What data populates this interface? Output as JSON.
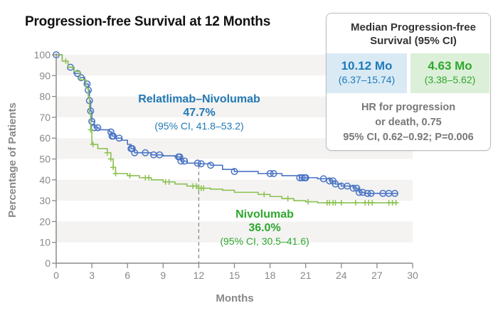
{
  "title": "Progression-free Survival at 12 Months",
  "summary_box": {
    "heading_line1": "Median Progression-free",
    "heading_line2": "Survival (95% CI)",
    "arm1": {
      "value": "10.12 Mo",
      "ci": "(6.37–15.74)",
      "color": "#1f7bb8",
      "bg": "#d9eaf5"
    },
    "arm2": {
      "value": "4.63 Mo",
      "ci": "(3.38–5.62)",
      "color": "#2ea82e",
      "bg": "#dcefd8"
    },
    "hr_line1": "HR for progression",
    "hr_line2": "or death, 0.75",
    "hr_line3": "95% CI, 0.62–0.92; P=0.006"
  },
  "annotations": {
    "arm1": {
      "name": "Relatlimab–Nivolumab",
      "pct": "47.7%",
      "ci": "(95% CI, 41.8–53.2)"
    },
    "arm2": {
      "name": "Nivolumab",
      "pct": "36.0%",
      "ci": "(95% CI, 30.5–41.6)"
    }
  },
  "chart_data": {
    "type": "line",
    "subtype": "kaplan-meier",
    "title": "Progression-free Survival at 12 Months",
    "xlabel": "Months",
    "ylabel": "Percentage of Patients",
    "xlim": [
      0,
      30
    ],
    "ylim": [
      0,
      100
    ],
    "xticks": [
      0,
      3,
      6,
      9,
      12,
      15,
      18,
      21,
      24,
      27,
      30
    ],
    "yticks": [
      0,
      10,
      20,
      30,
      40,
      50,
      60,
      70,
      80,
      90,
      100
    ],
    "reference_line_x": 12,
    "bands": "alternating light gray stripes 10-20, 30-40, 50-60, 70-80, 90-100",
    "series": [
      {
        "name": "Relatlimab–Nivolumab",
        "color": "#4a74c4",
        "marker": "circle",
        "points": [
          [
            0,
            100
          ],
          [
            0.5,
            97
          ],
          [
            1,
            94
          ],
          [
            1.5,
            91
          ],
          [
            2,
            89
          ],
          [
            2.4,
            86
          ],
          [
            2.7,
            83
          ],
          [
            2.8,
            78
          ],
          [
            2.9,
            73
          ],
          [
            3.0,
            68
          ],
          [
            3.2,
            65
          ],
          [
            3.6,
            64
          ],
          [
            4.5,
            63
          ],
          [
            4.7,
            61
          ],
          [
            5,
            60
          ],
          [
            5.5,
            59
          ],
          [
            6,
            57
          ],
          [
            6.3,
            55
          ],
          [
            6.6,
            53
          ],
          [
            8,
            52
          ],
          [
            9,
            51.5
          ],
          [
            10,
            51
          ],
          [
            10.5,
            49
          ],
          [
            11,
            48
          ],
          [
            12,
            47.7
          ],
          [
            13,
            47
          ],
          [
            14,
            45
          ],
          [
            15,
            44
          ],
          [
            17,
            43
          ],
          [
            19,
            42
          ],
          [
            20.5,
            41
          ],
          [
            22,
            40.5
          ],
          [
            23,
            39.5
          ],
          [
            23.5,
            38
          ],
          [
            24,
            37
          ],
          [
            25,
            36
          ],
          [
            25.5,
            34
          ],
          [
            26,
            33.5
          ],
          [
            28.7,
            33.2
          ]
        ],
        "censor_x": [
          0,
          1.2,
          1.8,
          2.1,
          2.6,
          2.7,
          2.8,
          2.9,
          3.0,
          3.2,
          3.5,
          4.6,
          4.7,
          4.8,
          5.3,
          6.3,
          6.4,
          6.6,
          7.5,
          8.2,
          8.7,
          10.3,
          10.4,
          10.5,
          10.8,
          11.9,
          12.2,
          13,
          15,
          18,
          18.3,
          20.5,
          20.7,
          20.9,
          21,
          22.5,
          23,
          23.3,
          23.5,
          24,
          24.5,
          25,
          25.3,
          25.5,
          25.8,
          26.2,
          26.5,
          27.5,
          28,
          28.5
        ]
      },
      {
        "name": "Nivolumab",
        "color": "#8cc152",
        "marker": "plus",
        "points": [
          [
            0,
            100
          ],
          [
            0.5,
            97
          ],
          [
            1,
            94
          ],
          [
            1.5,
            92
          ],
          [
            2,
            88
          ],
          [
            2.5,
            84
          ],
          [
            2.7,
            80
          ],
          [
            2.8,
            72
          ],
          [
            2.9,
            64
          ],
          [
            3.0,
            57
          ],
          [
            3.5,
            55
          ],
          [
            4.3,
            53
          ],
          [
            4.6,
            50
          ],
          [
            4.8,
            46
          ],
          [
            5,
            43
          ],
          [
            6,
            42
          ],
          [
            7,
            41
          ],
          [
            8,
            40
          ],
          [
            9,
            39
          ],
          [
            10,
            38
          ],
          [
            11,
            37
          ],
          [
            12,
            36
          ],
          [
            13,
            35.5
          ],
          [
            14,
            35
          ],
          [
            15,
            34
          ],
          [
            17,
            33
          ],
          [
            18,
            32
          ],
          [
            19,
            31
          ],
          [
            20,
            30
          ],
          [
            21,
            29.5
          ],
          [
            22,
            29
          ],
          [
            28.7,
            29
          ]
        ],
        "censor_x": [
          0.8,
          2.9,
          3.1,
          4.3,
          4.6,
          4.8,
          5.0,
          6.2,
          7.5,
          7.8,
          9.2,
          9.5,
          11.5,
          11.8,
          12.0,
          12.2,
          12.4,
          17.5,
          19.5,
          21.2,
          22.8,
          23.0,
          23.3,
          23.5,
          24.0,
          25.2,
          26.0,
          26.3,
          26.6,
          28.0,
          28.3,
          28.6
        ]
      }
    ]
  }
}
